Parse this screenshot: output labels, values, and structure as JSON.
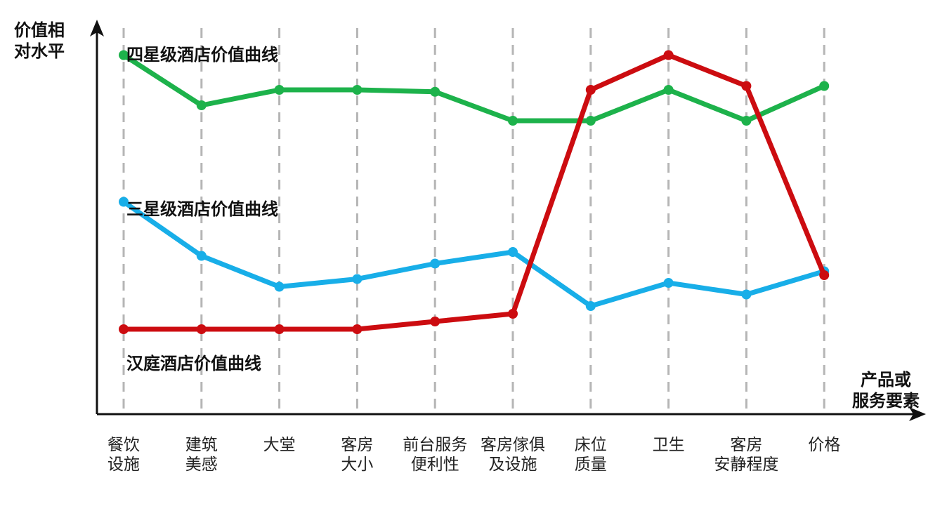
{
  "chart_data": {
    "type": "line",
    "ylabel": "价值相对水平",
    "ylabel_lines": [
      "价值相",
      "对水平"
    ],
    "xlabel": "产品或服务要素",
    "xlabel_lines": [
      "产品或",
      "服务要素"
    ],
    "categories": [
      [
        "餐饮",
        "设施"
      ],
      [
        "建筑",
        "美感"
      ],
      [
        "大堂"
      ],
      [
        "客房",
        "大小"
      ],
      [
        "前台服务",
        "便利性"
      ],
      [
        "客房傢俱",
        "及设施"
      ],
      [
        "床位",
        "质量"
      ],
      [
        "卫生"
      ],
      [
        "客房",
        "安静程度"
      ],
      [
        "价格"
      ]
    ],
    "ylim": [
      0,
      10
    ],
    "grid": "vertical dashed",
    "series": [
      {
        "name": "四星级酒店价值曲线",
        "color": "#1db24b",
        "values": [
          9.3,
          8.0,
          8.4,
          8.4,
          8.35,
          7.6,
          7.6,
          8.4,
          7.6,
          8.5
        ]
      },
      {
        "name": "三星级酒店价值曲线",
        "color": "#18aee8",
        "values": [
          5.5,
          4.1,
          3.3,
          3.5,
          3.9,
          4.2,
          2.8,
          3.4,
          3.1,
          3.7
        ]
      },
      {
        "name": "汉庭酒店价值曲线",
        "color": "#cc0c10",
        "values": [
          2.2,
          2.2,
          2.2,
          2.2,
          2.4,
          2.6,
          8.4,
          9.3,
          8.5,
          3.6
        ]
      }
    ]
  }
}
